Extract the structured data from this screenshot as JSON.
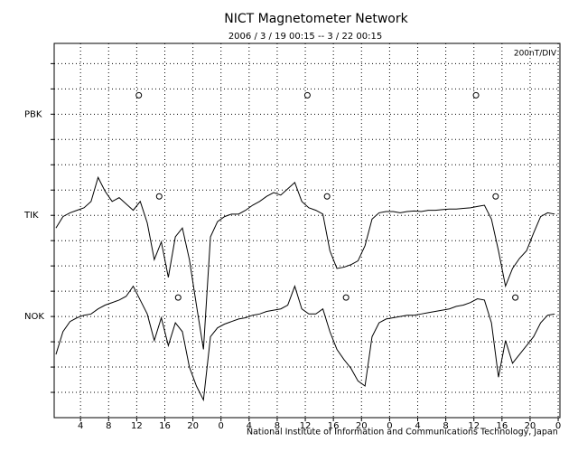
{
  "chart_data": {
    "type": "line",
    "title": "NICT Magnetometer Network",
    "subtitle": "2006 / 3 / 19  00:15 -- 3 / 22  00:15",
    "scale_note": "200nT/DIV",
    "footer": "National Institute of Information and Communications Technology, Japan",
    "xlim": [
      0.25,
      72.25
    ],
    "xticks": [
      4,
      8,
      12,
      16,
      20,
      {
        "value": 24,
        "label": "0"
      },
      {
        "value": 28,
        "label": "4"
      },
      {
        "value": 32,
        "label": "8"
      },
      {
        "value": 36,
        "label": "12"
      },
      {
        "value": 40,
        "label": "16"
      },
      {
        "value": 44,
        "label": "20"
      },
      {
        "value": 48,
        "label": "0"
      },
      {
        "value": 52,
        "label": "4"
      },
      {
        "value": 56,
        "label": "8"
      },
      {
        "value": 60,
        "label": "12"
      },
      {
        "value": 64,
        "label": "16"
      },
      {
        "value": 68,
        "label": "20"
      },
      {
        "value": 72,
        "label": "0"
      }
    ],
    "ylim": [
      0,
      2960
    ],
    "yticks": [
      {
        "value": 2400,
        "label": "PBK"
      },
      {
        "value": 1600,
        "label": "TIK"
      },
      {
        "value": 800,
        "label": "NOK"
      }
    ],
    "ygrid": [
      200,
      400,
      600,
      800,
      1000,
      1200,
      1400,
      1600,
      1800,
      2000,
      2200,
      2400,
      2600,
      2800
    ],
    "grid": true,
    "color": "#000000",
    "x": [
      0.5,
      1.5,
      2.5,
      3.5,
      4.5,
      5.5,
      6.5,
      7.5,
      8.5,
      9.5,
      10.5,
      11.5,
      12.5,
      13.5,
      14.5,
      15.5,
      16.5,
      17.5,
      18.5,
      19.5,
      20.5,
      21.5,
      22.5,
      23.5,
      24.5,
      25.5,
      26.5,
      27.5,
      28.5,
      29.5,
      30.5,
      31.5,
      32.5,
      33.5,
      34.5,
      35.5,
      36.5,
      37.5,
      38.5,
      39.5,
      40.5,
      41.5,
      42.5,
      43.5,
      44.5,
      45.5,
      46.5,
      47.5,
      48.5,
      49.5,
      50.5,
      51.5,
      52.5,
      53.5,
      54.5,
      55.5,
      56.5,
      57.5,
      58.5,
      59.5,
      60.5,
      61.5,
      62.5,
      63.5,
      64.5,
      65.5,
      66.5,
      67.5,
      68.5,
      69.5,
      70.5,
      71.5
    ],
    "series": [
      {
        "name": "TIK",
        "color": "#000000",
        "values": [
          1500,
          1590,
          1620,
          1640,
          1660,
          1710,
          1900,
          1790,
          1710,
          1740,
          1690,
          1640,
          1710,
          1540,
          1250,
          1390,
          1110,
          1430,
          1500,
          1250,
          890,
          540,
          1430,
          1550,
          1590,
          1610,
          1610,
          1640,
          1680,
          1710,
          1750,
          1780,
          1760,
          1810,
          1860,
          1710,
          1660,
          1640,
          1610,
          1320,
          1180,
          1190,
          1210,
          1240,
          1360,
          1570,
          1620,
          1630,
          1630,
          1620,
          1630,
          1635,
          1630,
          1640,
          1640,
          1645,
          1650,
          1650,
          1655,
          1660,
          1670,
          1680,
          1570,
          1320,
          1040,
          1180,
          1260,
          1320,
          1460,
          1590,
          1620,
          1610
        ]
      },
      {
        "name": "NOK",
        "color": "#000000",
        "values": [
          500,
          680,
          760,
          790,
          810,
          820,
          860,
          890,
          910,
          930,
          960,
          1040,
          930,
          820,
          610,
          790,
          570,
          750,
          680,
          400,
          250,
          140,
          640,
          710,
          740,
          760,
          780,
          790,
          810,
          820,
          840,
          850,
          860,
          890,
          1040,
          860,
          820,
          820,
          860,
          680,
          540,
          460,
          390,
          290,
          250,
          640,
          750,
          780,
          790,
          800,
          810,
          810,
          820,
          830,
          840,
          850,
          860,
          880,
          890,
          910,
          940,
          930,
          750,
          320,
          610,
          430,
          500,
          570,
          640,
          750,
          810,
          820
        ]
      }
    ],
    "markers": {
      "x": [
        12.3,
        36.3,
        60.3,
        15.2,
        39.1,
        63.1,
        17.9,
        41.8,
        65.9
      ],
      "values": [
        2550,
        2550,
        2550,
        1750,
        1750,
        1750,
        950,
        950,
        950
      ]
    }
  }
}
